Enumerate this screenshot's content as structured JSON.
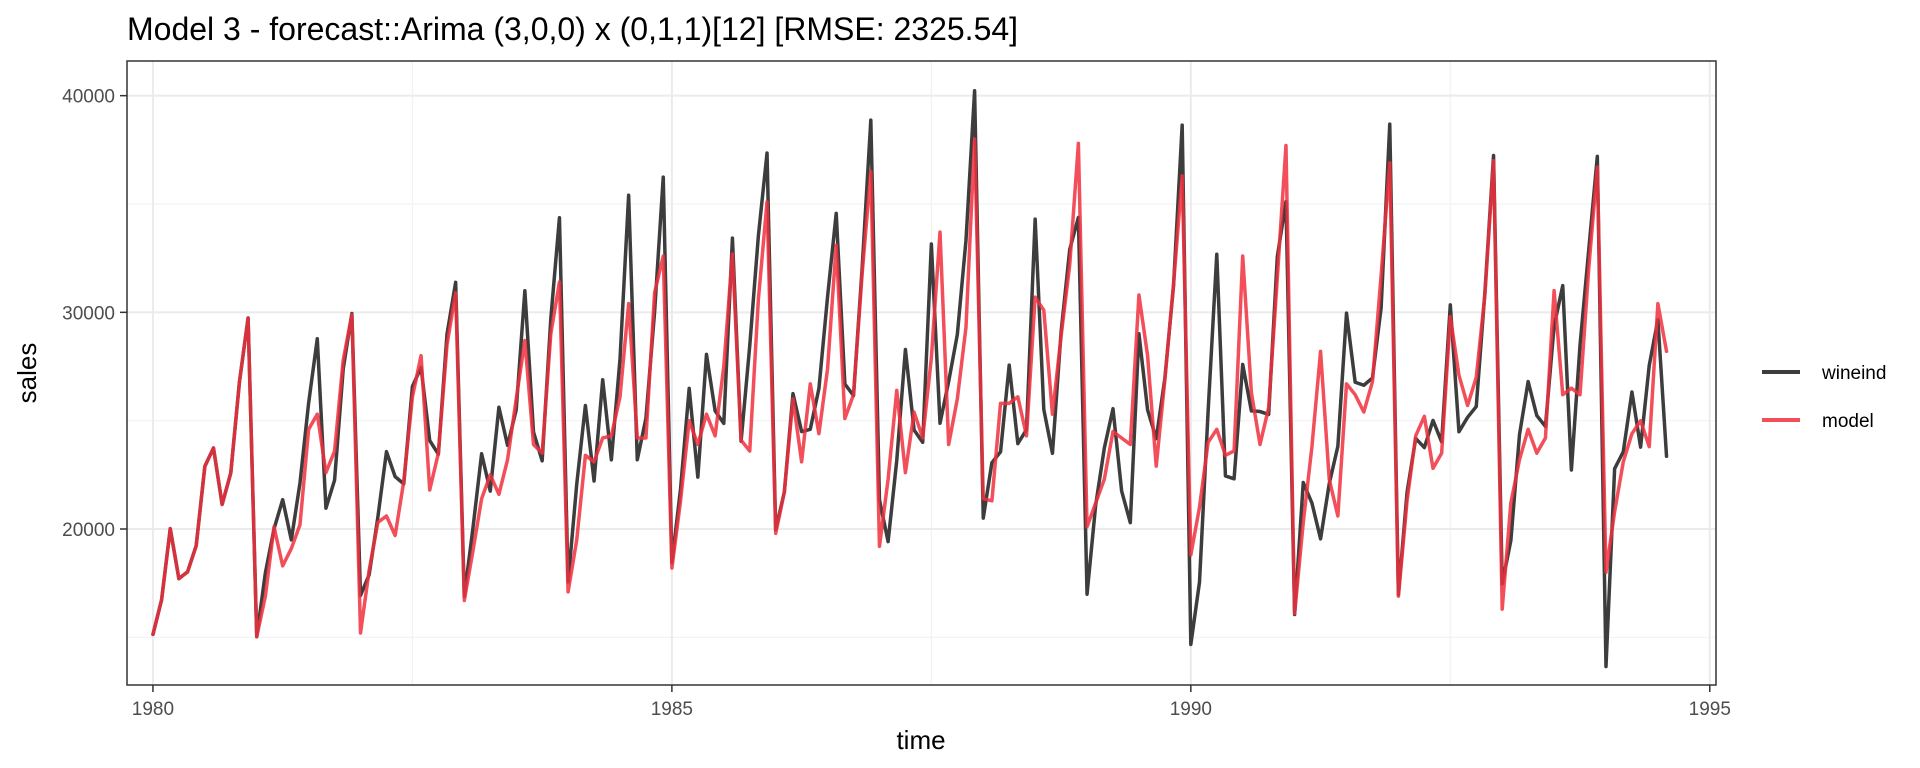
{
  "chart_data": {
    "type": "line",
    "title": "Model 3 - forecast::Arima (3,0,0) x (0,1,1)[12]       [RMSE: 2325.54]",
    "xlabel": "time",
    "ylabel": "sales",
    "xlim": [
      1979.75,
      1995.06
    ],
    "ylim": [
      12800,
      41600
    ],
    "x_ticks": [
      1980,
      1985,
      1990,
      1995
    ],
    "x_tick_labels": [
      "1980",
      "1985",
      "1990",
      "1995"
    ],
    "y_ticks": [
      20000,
      30000,
      40000
    ],
    "y_tick_labels": [
      "20000",
      "30000",
      "40000"
    ],
    "grid": true,
    "legend_position": "right",
    "x_start": 1980.0,
    "x_step": 0.0833333,
    "series": [
      {
        "name": "wineind",
        "color": "#333333",
        "values": [
          15136,
          16733,
          20016,
          17708,
          18019,
          19227,
          22893,
          23739,
          21133,
          22591,
          26786,
          29740,
          15028,
          17977,
          20008,
          21354,
          19498,
          22125,
          25817,
          28779,
          20960,
          22254,
          27392,
          29945,
          16933,
          17892,
          20533,
          23569,
          22417,
          22084,
          26580,
          27454,
          24081,
          23451,
          28991,
          31386,
          16896,
          20045,
          23471,
          21747,
          25621,
          23859,
          25500,
          30998,
          24475,
          23145,
          29701,
          34365,
          17556,
          22077,
          25702,
          22214,
          26886,
          23191,
          27831,
          35406,
          23195,
          25110,
          30009,
          36242,
          18450,
          21845,
          26488,
          22394,
          28057,
          25451,
          24872,
          33424,
          24052,
          28449,
          33533,
          37351,
          19969,
          21701,
          26249,
          24493,
          24603,
          26485,
          30723,
          34569,
          26689,
          26157,
          32064,
          38870,
          21337,
          19419,
          23166,
          28286,
          24570,
          24001,
          33151,
          24878,
          26804,
          28967,
          33311,
          40226,
          20504,
          23060,
          23562,
          27562,
          23940,
          24584,
          34303,
          25517,
          23494,
          29095,
          32903,
          34379,
          16991,
          21109,
          23740,
          25552,
          21752,
          20294,
          29009,
          25500,
          24166,
          26960,
          31222,
          38641,
          14672,
          17543,
          25453,
          32683,
          22449,
          22316,
          27595,
          25451,
          25421,
          25288,
          32568,
          35110,
          16052,
          22146,
          21198,
          19543,
          22084,
          23816,
          29961,
          26773,
          26635,
          26972,
          30207,
          38687,
          16974,
          21697,
          24179,
          23757,
          25013,
          24019,
          30345,
          24488,
          25156,
          25650,
          30923,
          37240,
          17466,
          19463,
          24352,
          26805,
          25236,
          24735,
          29356,
          31234,
          22724,
          28496,
          32857,
          37198,
          13652,
          22784,
          23565,
          26323,
          23779,
          27549,
          29660,
          23356
        ]
      },
      {
        "name": "model",
        "color": "#f0303e",
        "values": [
          15136,
          16733,
          20016,
          17708,
          18019,
          19227,
          22893,
          23739,
          21133,
          22591,
          26786,
          29740,
          15028,
          16900,
          20100,
          18300,
          19100,
          20200,
          24600,
          25300,
          22600,
          23600,
          27800,
          29900,
          15200,
          18100,
          20300,
          20600,
          19700,
          22200,
          26100,
          28000,
          21800,
          23500,
          28500,
          30900,
          16700,
          19000,
          21400,
          22500,
          21600,
          23200,
          26000,
          28700,
          23900,
          23500,
          29000,
          31400,
          17100,
          19500,
          23400,
          23100,
          24200,
          24300,
          26100,
          30400,
          24200,
          24200,
          30900,
          32600,
          18200,
          21300,
          25000,
          23900,
          25300,
          24300,
          27500,
          32700,
          24100,
          23600,
          30600,
          35100,
          19800,
          21700,
          26000,
          23100,
          26700,
          24400,
          27400,
          33100,
          25100,
          26200,
          31800,
          36500,
          19200,
          22300,
          26400,
          22600,
          25400,
          24200,
          27900,
          33700,
          23900,
          26000,
          29300,
          38000,
          21400,
          21300,
          25800,
          25800,
          26100,
          24300,
          30700,
          30100,
          25300,
          28900,
          32200,
          37800,
          20100,
          21200,
          22300,
          24500,
          24200,
          23900,
          30800,
          28000,
          22900,
          26900,
          31300,
          36300,
          18800,
          21000,
          24000,
          24600,
          23400,
          23600,
          32600,
          26300,
          23900,
          25600,
          31600,
          37700,
          16100,
          20300,
          23800,
          28200,
          22300,
          20600,
          26700,
          26200,
          25400,
          26800,
          31700,
          36900,
          16900,
          21300,
          24300,
          25200,
          22800,
          23500,
          29800,
          27100,
          25700,
          27000,
          30800,
          37000,
          16300,
          21200,
          23200,
          24600,
          23500,
          24200,
          31000,
          26200,
          26500,
          26200,
          32000,
          36700,
          18000,
          20800,
          23100,
          24400,
          25000,
          23800,
          30400,
          28200
        ]
      }
    ]
  }
}
